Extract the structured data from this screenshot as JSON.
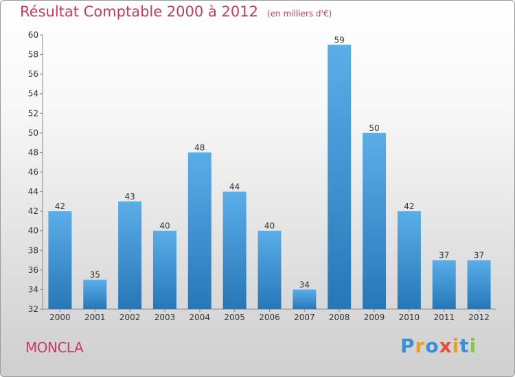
{
  "title": "Résultat Comptable 2000 à 2012",
  "subtitle": "(en milliers d'€)",
  "commune": "MONCLA",
  "logo": {
    "text": "Proxiti",
    "letters": [
      {
        "ch": "P",
        "color": "#3a8fd6"
      },
      {
        "ch": "r",
        "color": "#f39c12"
      },
      {
        "ch": "o",
        "color": "#3a8fd6"
      },
      {
        "ch": "x",
        "color": "#e74c3c"
      },
      {
        "ch": "i",
        "color": "#f39c12"
      },
      {
        "ch": "t",
        "color": "#3a8fd6"
      },
      {
        "ch": "i",
        "color": "#8bc34a"
      }
    ]
  },
  "colors": {
    "title": "#c73a62",
    "bar_light": "#5aaee8",
    "bar_dark": "#2677b8"
  },
  "chart_data": {
    "type": "bar",
    "categories": [
      "2000",
      "2001",
      "2002",
      "2003",
      "2004",
      "2005",
      "2006",
      "2007",
      "2008",
      "2009",
      "2010",
      "2011",
      "2012"
    ],
    "values": [
      42,
      35,
      43,
      40,
      48,
      44,
      40,
      34,
      59,
      50,
      42,
      37,
      37
    ],
    "title": "Résultat Comptable 2000 à 2012",
    "xlabel": "",
    "ylabel": "",
    "ylim": [
      32,
      60
    ],
    "yticks": [
      32,
      34,
      36,
      38,
      40,
      42,
      44,
      46,
      48,
      50,
      52,
      54,
      56,
      58,
      60
    ],
    "grid": false,
    "legend": "none"
  }
}
